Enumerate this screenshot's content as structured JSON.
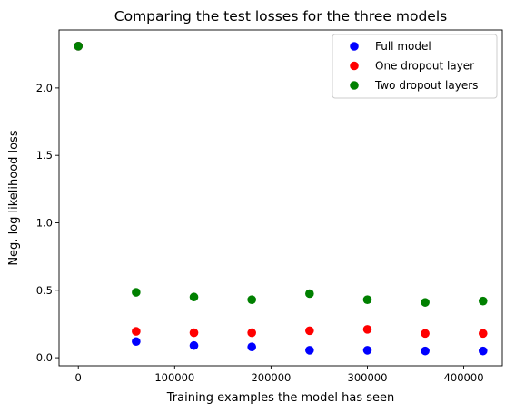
{
  "chart_data": {
    "type": "scatter",
    "title": "Comparing the test losses for the three models",
    "xlabel": "Training examples the model has seen",
    "ylabel": "Neg. log likelihood loss",
    "xlim": [
      -20000,
      440000
    ],
    "ylim": [
      -0.06,
      2.43
    ],
    "xticks": [
      0,
      100000,
      200000,
      300000,
      400000
    ],
    "yticks": [
      0.0,
      0.5,
      1.0,
      1.5,
      2.0
    ],
    "xtick_labels": [
      "0",
      "100000",
      "200000",
      "300000",
      "400000"
    ],
    "ytick_labels": [
      "0.0",
      "0.5",
      "1.0",
      "1.5",
      "2.0"
    ],
    "grid": false,
    "legend_position": "top-right",
    "x": [
      0,
      60000,
      120000,
      180000,
      240000,
      300000,
      360000,
      420000
    ],
    "series": [
      {
        "name": "Full model",
        "color": "#0000ff",
        "values": [
          2.31,
          0.12,
          0.09,
          0.08,
          0.055,
          0.055,
          0.05,
          0.05
        ]
      },
      {
        "name": "One dropout layer",
        "color": "#ff0000",
        "values": [
          2.31,
          0.195,
          0.185,
          0.185,
          0.2,
          0.21,
          0.18,
          0.18
        ]
      },
      {
        "name": "Two dropout layers",
        "color": "#008000",
        "values": [
          2.31,
          0.485,
          0.45,
          0.43,
          0.475,
          0.43,
          0.41,
          0.42
        ]
      }
    ]
  }
}
